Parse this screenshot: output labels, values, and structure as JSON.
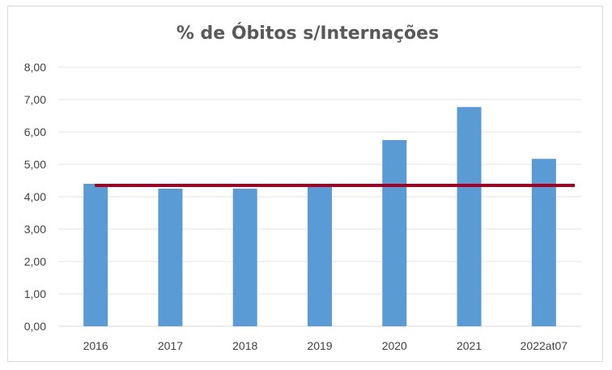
{
  "chart_data": {
    "type": "bar",
    "title": "% de Óbitos s/Internações",
    "categories": [
      "2016",
      "2017",
      "2018",
      "2019",
      "2020",
      "2021",
      "2022at07"
    ],
    "values": [
      4.4,
      4.25,
      4.25,
      4.3,
      5.75,
      6.77,
      5.17
    ],
    "reference_line": {
      "value": 4.35,
      "color": "#a50021"
    },
    "ylim": [
      0,
      8
    ],
    "y_ticks": [
      "0,00",
      "1,00",
      "2,00",
      "3,00",
      "4,00",
      "5,00",
      "6,00",
      "7,00",
      "8,00"
    ],
    "xlabel": "",
    "ylabel": "",
    "grid": true,
    "legend": "none",
    "bar_color": "#5b9bd5"
  }
}
